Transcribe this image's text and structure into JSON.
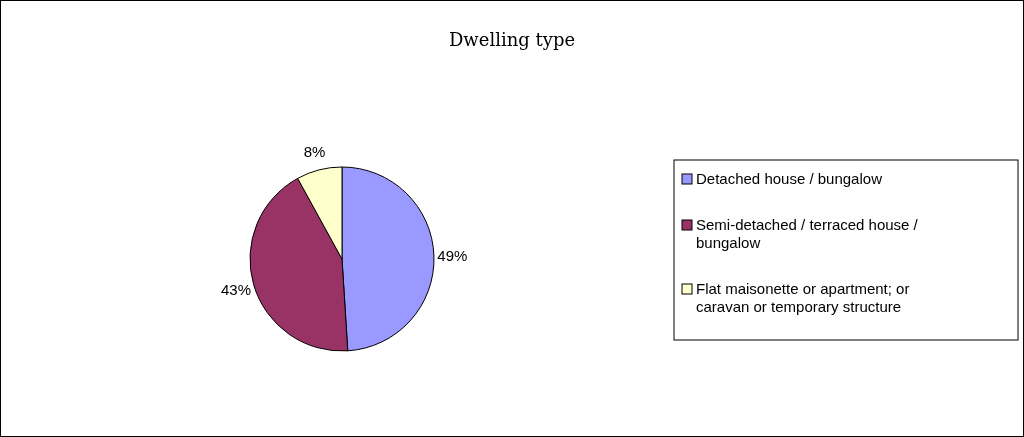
{
  "chart_data": {
    "type": "pie",
    "title": "Dwelling type",
    "categories": [
      "Detached house / bungalow",
      "Semi-detached / terraced house / bungalow",
      "Flat maisonette or apartment; or caravan or temporary structure"
    ],
    "values": [
      49,
      43,
      8
    ],
    "colors": [
      "#9999ff",
      "#993366",
      "#ffffcc"
    ],
    "value_labels": [
      "49%",
      "43%",
      "8%"
    ],
    "legend": "right"
  }
}
